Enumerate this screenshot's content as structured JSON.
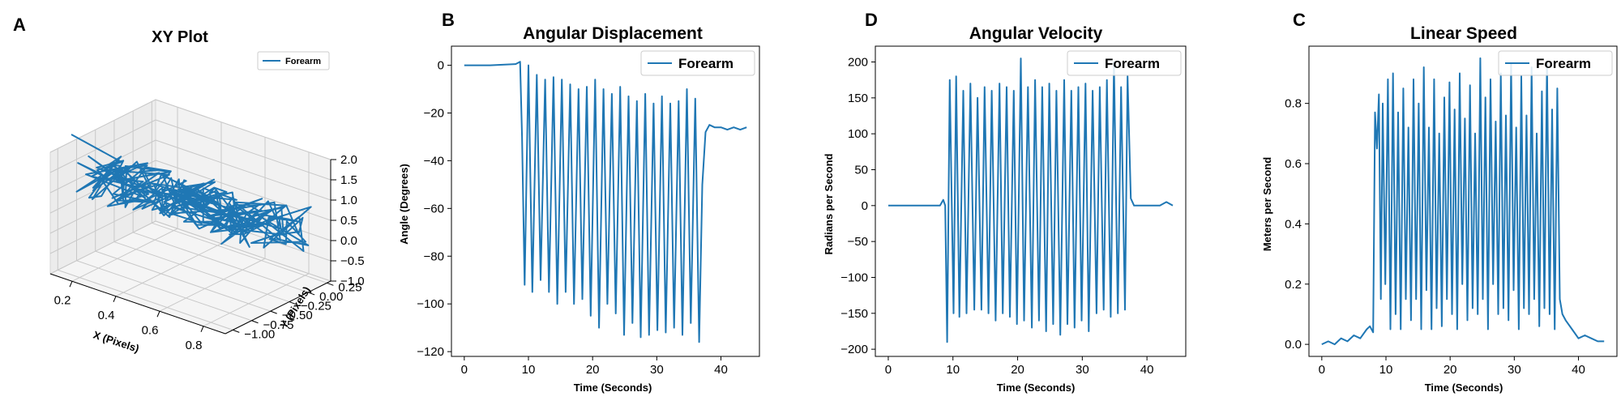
{
  "colors": {
    "series": "#1f77b4",
    "grid": "#b0b0b0",
    "pane": "#f2f2f2"
  },
  "chart_data": [
    {
      "panel_label": "A",
      "type": "line",
      "title": "XY Plot",
      "xlabel": "X (Pixels)",
      "ylabel": "Y (Pixels)",
      "legend": "top-right",
      "xticks": [
        "0.2",
        "0.4",
        "0.6",
        "0.8"
      ],
      "yticks": [
        "0.25",
        "0.00",
        "-0.25",
        "-0.50",
        "-0.75",
        "-1.00"
      ],
      "zticks": [
        "2.0",
        "1.5",
        "1.0",
        "0.5",
        "0.0",
        "-0.5",
        "-1.0"
      ],
      "xlim": [
        0.1,
        0.9
      ],
      "ylim": [
        -1.1,
        0.3
      ],
      "zlim": [
        -1.0,
        2.0
      ],
      "series": [
        {
          "name": "Forearm"
        }
      ]
    },
    {
      "panel_label": "B",
      "type": "line",
      "title": "Angular Displacement",
      "xlabel": "Time (Seconds)",
      "ylabel": "Angle (Degrees)",
      "legend": "top-right",
      "xlim": [
        -2,
        46
      ],
      "ylim": [
        -122,
        8
      ],
      "xticks": [
        0,
        10,
        20,
        30,
        40
      ],
      "yticks": [
        0,
        -20,
        -40,
        -60,
        -80,
        -100,
        -120
      ],
      "series": [
        {
          "name": "Forearm",
          "x": [
            0,
            4,
            8,
            8.7,
            9.0,
            9.4,
            10.0,
            10.6,
            11.3,
            11.9,
            12.6,
            13.2,
            13.9,
            14.5,
            15.2,
            15.8,
            16.5,
            17.1,
            17.8,
            18.4,
            19.1,
            19.7,
            20.4,
            21.0,
            21.7,
            22.3,
            23.0,
            23.6,
            24.3,
            24.9,
            25.6,
            26.2,
            26.9,
            27.5,
            28.2,
            28.8,
            29.5,
            30.1,
            30.8,
            31.4,
            32.1,
            32.7,
            33.4,
            34.0,
            34.7,
            35.3,
            36.0,
            36.6,
            37.1,
            37.6,
            38.2,
            39,
            40,
            41,
            42,
            43,
            44
          ],
          "y": [
            0,
            0,
            0.5,
            1.5,
            -30,
            -92,
            0,
            -95,
            -4,
            -90,
            -6,
            -95,
            -5,
            -100,
            -6,
            -95,
            -8,
            -100,
            -10,
            -98,
            -9,
            -105,
            -6,
            -110,
            -10,
            -100,
            -12,
            -104,
            -9,
            -113,
            -13,
            -108,
            -15,
            -114,
            -12,
            -113,
            -16,
            -111,
            -13,
            -112,
            -16,
            -110,
            -15,
            -113,
            -10,
            -108,
            -14,
            -116,
            -50,
            -28,
            -25,
            -26,
            -26,
            -27,
            -26,
            -27,
            -26
          ]
        }
      ]
    },
    {
      "panel_label": "D",
      "type": "line",
      "title": "Angular Velocity",
      "xlabel": "Time (Seconds)",
      "ylabel": "Radians per Second",
      "legend": "top-right",
      "xlim": [
        -2,
        46
      ],
      "ylim": [
        -210,
        222
      ],
      "xticks": [
        0,
        10,
        20,
        30,
        40
      ],
      "yticks": [
        200,
        150,
        100,
        50,
        0,
        -50,
        -100,
        -150,
        -200
      ],
      "series": [
        {
          "name": "Forearm",
          "x": [
            0,
            4,
            8,
            8.5,
            8.8,
            9.1,
            9.5,
            10.1,
            10.5,
            11.0,
            11.6,
            12.1,
            12.7,
            13.3,
            13.8,
            14.4,
            14.9,
            15.5,
            16.0,
            16.6,
            17.2,
            17.7,
            18.3,
            18.8,
            19.4,
            19.9,
            20.5,
            21.0,
            21.6,
            22.2,
            22.7,
            23.3,
            23.8,
            24.4,
            24.9,
            25.5,
            26.0,
            26.6,
            27.2,
            27.7,
            28.3,
            28.8,
            29.4,
            29.9,
            30.5,
            31.0,
            31.6,
            32.2,
            32.7,
            33.3,
            33.8,
            34.4,
            34.9,
            35.5,
            36.0,
            36.6,
            37.0,
            37.5,
            38,
            39,
            40,
            41,
            42,
            43,
            44
          ],
          "y": [
            0,
            0,
            0,
            8,
            0,
            -190,
            175,
            -150,
            180,
            -155,
            160,
            -150,
            170,
            -145,
            150,
            -145,
            165,
            -150,
            160,
            -160,
            170,
            -150,
            165,
            -155,
            160,
            -165,
            205,
            -160,
            165,
            -170,
            175,
            -160,
            165,
            -175,
            170,
            -165,
            160,
            -180,
            175,
            -165,
            160,
            -170,
            165,
            -160,
            170,
            -175,
            160,
            -150,
            165,
            -145,
            175,
            -155,
            200,
            -150,
            165,
            -145,
            180,
            10,
            0,
            0,
            0,
            0,
            0,
            5,
            0
          ]
        }
      ]
    },
    {
      "panel_label": "C",
      "type": "line",
      "title": "Linear Speed",
      "xlabel": "Time (Seconds)",
      "ylabel": "Meters per Second",
      "legend": "top-right",
      "xlim": [
        -2,
        46
      ],
      "ylim": [
        -0.04,
        0.99
      ],
      "xticks": [
        0,
        10,
        20,
        30,
        40
      ],
      "yticks": [
        0.0,
        0.2,
        0.4,
        0.6,
        0.8
      ],
      "series": [
        {
          "name": "Forearm",
          "x": [
            0,
            1,
            2,
            3,
            4,
            5,
            6,
            7,
            7.5,
            8.0,
            8.3,
            8.6,
            8.9,
            9.2,
            9.5,
            9.9,
            10.3,
            10.7,
            11.1,
            11.5,
            11.9,
            12.3,
            12.7,
            13.1,
            13.5,
            13.9,
            14.3,
            14.7,
            15.1,
            15.5,
            15.9,
            16.3,
            16.7,
            17.1,
            17.5,
            17.9,
            18.3,
            18.7,
            19.1,
            19.5,
            19.9,
            20.3,
            20.7,
            21.1,
            21.5,
            21.9,
            22.3,
            22.7,
            23.1,
            23.5,
            23.9,
            24.3,
            24.7,
            25.1,
            25.5,
            25.9,
            26.3,
            26.7,
            27.1,
            27.5,
            27.9,
            28.3,
            28.7,
            29.1,
            29.5,
            29.9,
            30.3,
            30.7,
            31.1,
            31.5,
            31.9,
            32.3,
            32.7,
            33.1,
            33.5,
            33.9,
            34.3,
            34.7,
            35.1,
            35.5,
            35.9,
            36.3,
            36.7,
            37.1,
            37.5,
            38.0,
            39,
            40,
            41,
            42,
            43,
            44
          ],
          "y": [
            0.0,
            0.01,
            0.0,
            0.02,
            0.01,
            0.03,
            0.02,
            0.05,
            0.06,
            0.04,
            0.77,
            0.65,
            0.83,
            0.15,
            0.8,
            0.2,
            0.88,
            0.05,
            0.9,
            0.1,
            0.77,
            0.05,
            0.85,
            0.15,
            0.72,
            0.08,
            0.88,
            0.15,
            0.8,
            0.05,
            0.92,
            0.18,
            0.72,
            0.05,
            0.88,
            0.12,
            0.7,
            0.06,
            0.82,
            0.15,
            0.87,
            0.1,
            0.78,
            0.05,
            0.9,
            0.2,
            0.75,
            0.08,
            0.86,
            0.12,
            0.7,
            0.1,
            0.95,
            0.15,
            0.82,
            0.05,
            0.88,
            0.2,
            0.74,
            0.1,
            0.9,
            0.12,
            0.76,
            0.08,
            0.93,
            0.18,
            0.72,
            0.05,
            0.89,
            0.12,
            0.76,
            0.1,
            0.92,
            0.15,
            0.7,
            0.06,
            0.84,
            0.12,
            0.94,
            0.1,
            0.78,
            0.05,
            0.85,
            0.15,
            0.1,
            0.08,
            0.05,
            0.02,
            0.03,
            0.02,
            0.01,
            0.01
          ]
        }
      ]
    }
  ]
}
